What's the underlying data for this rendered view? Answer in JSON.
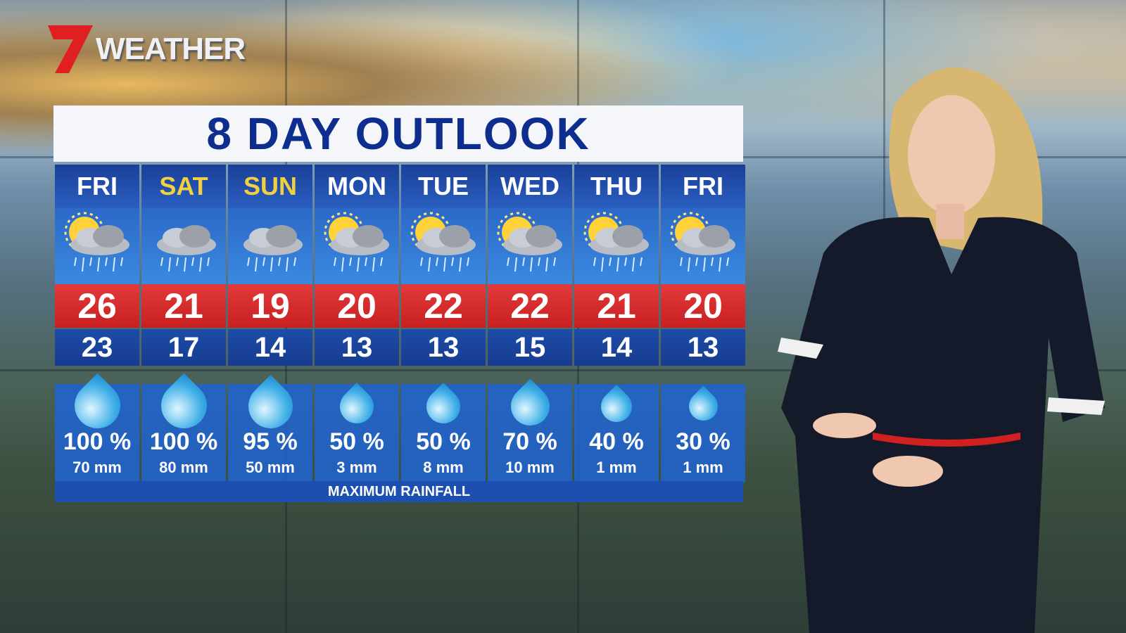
{
  "branding": {
    "logo_mark": "7",
    "logo_word": "WEATHER",
    "logo_color": "#e02020"
  },
  "title": "8 DAY OUTLOOK",
  "days": [
    {
      "day": "FRI",
      "weekend": false,
      "icon": "sun-cloud-rain-icon",
      "max": "26",
      "min": "23",
      "chance": "100 %",
      "rain": "70 mm",
      "chance_value": 100
    },
    {
      "day": "SAT",
      "weekend": true,
      "icon": "cloud-rain-icon",
      "max": "21",
      "min": "17",
      "chance": "100 %",
      "rain": "80 mm",
      "chance_value": 100
    },
    {
      "day": "SUN",
      "weekend": true,
      "icon": "cloud-rain-icon",
      "max": "19",
      "min": "14",
      "chance": "95 %",
      "rain": "50 mm",
      "chance_value": 95
    },
    {
      "day": "MON",
      "weekend": false,
      "icon": "sun-cloud-rain-icon",
      "max": "20",
      "min": "13",
      "chance": "50 %",
      "rain": "3  mm",
      "chance_value": 50
    },
    {
      "day": "TUE",
      "weekend": false,
      "icon": "sun-cloud-rain-icon",
      "max": "22",
      "min": "13",
      "chance": "50 %",
      "rain": "8  mm",
      "chance_value": 50
    },
    {
      "day": "WED",
      "weekend": false,
      "icon": "sun-cloud-rain-icon",
      "max": "22",
      "min": "15",
      "chance": "70 %",
      "rain": "10 mm",
      "chance_value": 70
    },
    {
      "day": "THU",
      "weekend": false,
      "icon": "sun-cloud-rain-icon",
      "max": "21",
      "min": "14",
      "chance": "40 %",
      "rain": "1  mm",
      "chance_value": 40
    },
    {
      "day": "FRI",
      "weekend": false,
      "icon": "sun-cloud-rain-icon",
      "max": "20",
      "min": "13",
      "chance": "30 %",
      "rain": "1  mm",
      "chance_value": 30
    }
  ],
  "footer_label": "MAXIMUM RAINFALL",
  "colors": {
    "title": "#0d2e8e",
    "max_band": "#d42a2a",
    "weekend_label": "#f0d040",
    "weekday_label": "#ffffff"
  }
}
